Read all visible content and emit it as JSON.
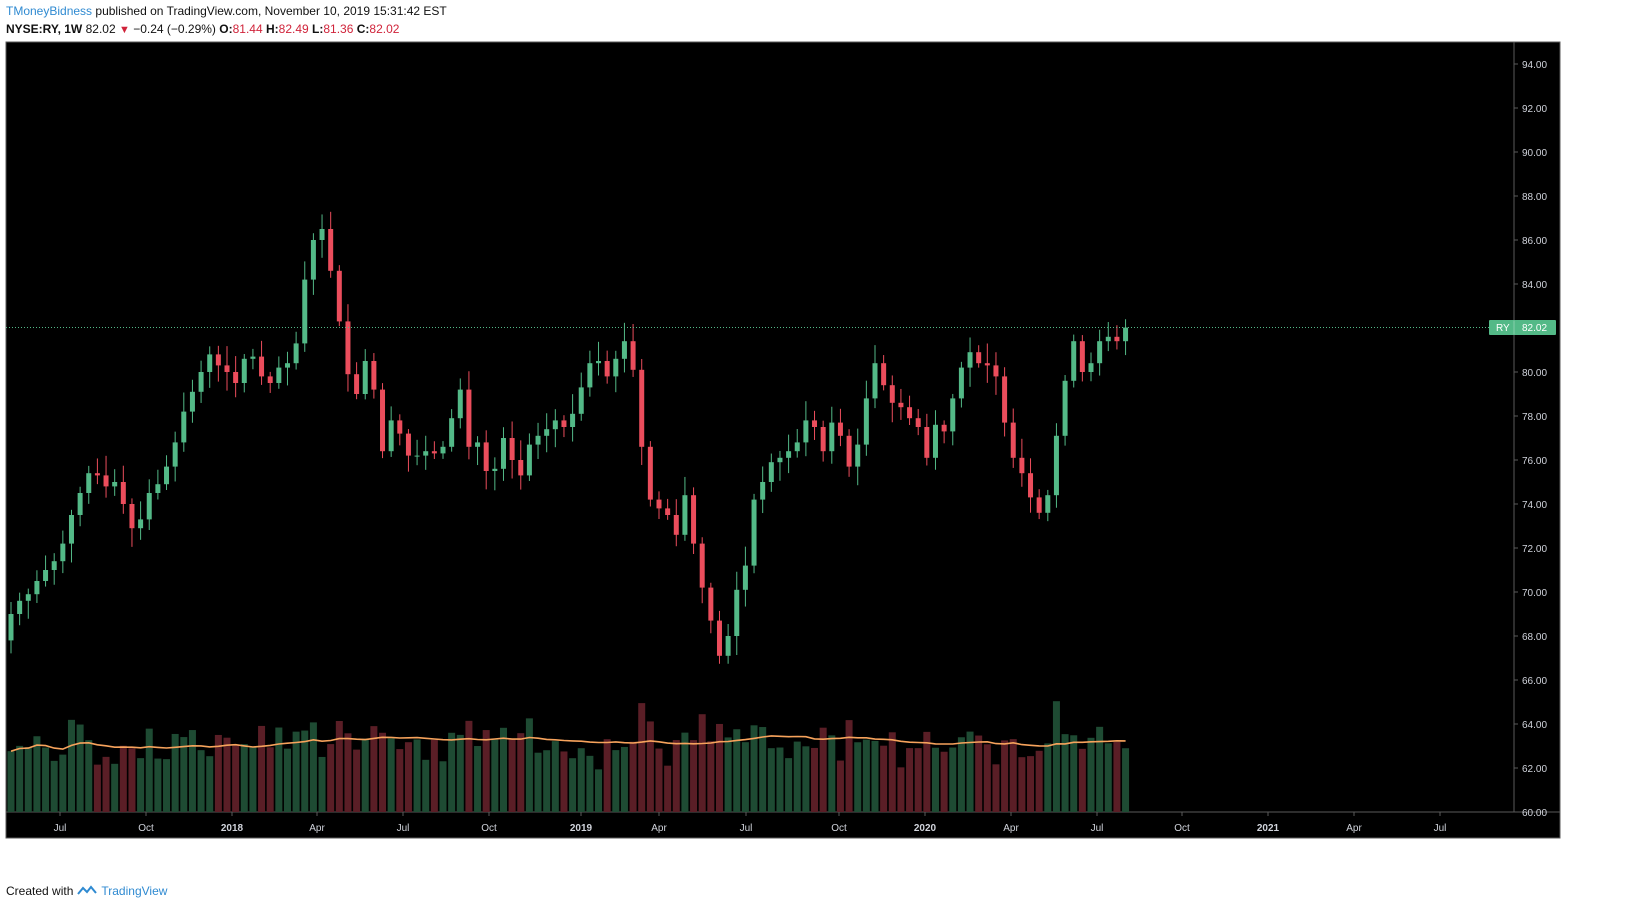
{
  "header": {
    "author": "TMoneyBidness",
    "published": "published on TradingView.com, November 10, 2019 15:31:42 EST",
    "symbol": "NYSE:RY, 1W",
    "last": "82.02",
    "change": "−0.24 (−0.29%)",
    "o_label": "O:",
    "o": "81.44",
    "h_label": "H:",
    "h": "82.49",
    "l_label": "L:",
    "l": "81.36",
    "c_label": "C:",
    "c": "82.02",
    "down_arrow": "▼"
  },
  "footer": {
    "created": "Created with",
    "brand": "TradingView",
    "logo_icon": "tradingview-logo-icon"
  },
  "colors": {
    "background": "#000000",
    "up": "#53b987",
    "down": "#eb4d5c",
    "vol_up": "#1e4b33",
    "vol_down": "#5a1e26",
    "ma": "#f7a35c",
    "last_price_line": "#53b987",
    "axis_text": "#d1d4dc"
  },
  "chart_data": {
    "type": "candlestick",
    "interval": "1W",
    "ylim": [
      60,
      95
    ],
    "y_ticks": [
      "60.00",
      "62.00",
      "64.00",
      "66.00",
      "68.00",
      "70.00",
      "72.00",
      "74.00",
      "76.00",
      "78.00",
      "80.00",
      "82.00",
      "84.00",
      "86.00",
      "88.00",
      "90.00",
      "92.00",
      "94.00"
    ],
    "x_ticks": [
      "Jul",
      "Oct",
      "2018",
      "Apr",
      "Jul",
      "Oct",
      "2019",
      "Apr",
      "Jul",
      "Oct",
      "2020",
      "Apr",
      "Jul",
      "Oct",
      "2021",
      "Apr",
      "Jul"
    ],
    "last_price": 82.02,
    "price_label": "RY",
    "price_label_value": "82.02",
    "close": [
      69.0,
      69.6,
      69.9,
      70.5,
      71.0,
      71.4,
      72.2,
      73.5,
      74.5,
      75.4,
      75.3,
      74.8,
      75.0,
      74.0,
      72.9,
      73.3,
      74.5,
      74.9,
      75.7,
      76.8,
      78.2,
      79.1,
      80.0,
      80.8,
      80.3,
      80.0,
      79.5,
      80.6,
      80.7,
      79.8,
      79.5,
      80.2,
      80.4,
      81.3,
      84.2,
      86.0,
      86.5,
      84.6,
      82.3,
      79.9,
      79.0,
      80.5,
      79.2,
      76.4,
      77.8,
      77.2,
      76.2,
      76.2,
      76.4,
      76.3,
      76.6,
      77.9,
      79.2,
      76.6,
      76.8,
      75.5,
      75.6,
      77.0,
      76.0,
      75.3,
      76.7,
      77.1,
      77.4,
      77.8,
      77.5,
      78.1,
      79.3,
      80.4,
      80.5,
      79.8,
      80.6,
      81.4,
      80.1,
      76.6,
      74.2,
      73.8,
      73.5,
      72.6,
      74.4,
      72.2,
      70.2,
      68.7,
      67.1,
      68.0,
      70.1,
      71.2,
      74.2,
      75.0,
      75.9,
      76.1,
      76.4,
      76.8,
      77.8,
      77.5,
      76.4,
      77.7,
      77.1,
      75.7,
      76.7,
      78.8,
      80.4,
      79.4,
      78.6,
      78.4,
      77.9,
      77.5,
      76.1,
      77.6,
      77.3,
      78.8,
      80.2,
      80.9,
      80.4,
      80.3,
      79.8,
      77.7,
      76.1,
      75.4,
      74.3,
      73.6,
      74.4,
      77.1,
      79.6,
      81.4,
      80.0,
      80.4,
      81.4,
      81.6,
      81.4,
      82.02
    ],
    "volume_note": "weekly volume bars with moving average overlay"
  }
}
